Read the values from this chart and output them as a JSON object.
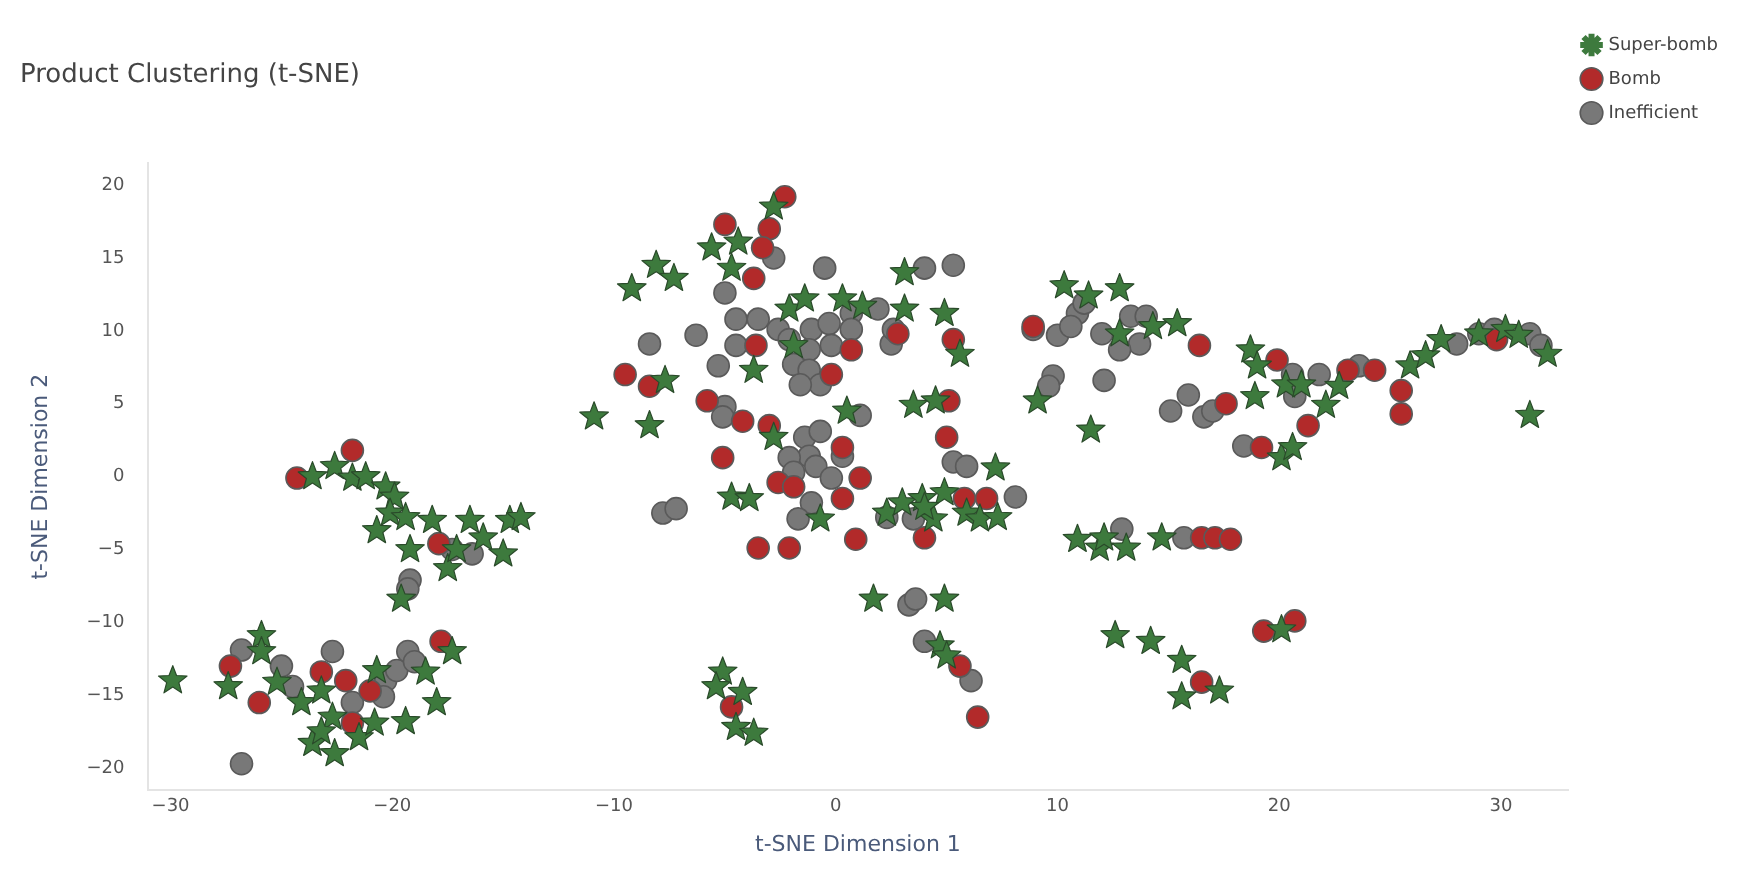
{
  "chart_data": {
    "type": "scatter",
    "title": "Product Clustering (t-SNE)",
    "xlabel": "t-SNE Dimension 1",
    "ylabel": "t-SNE Dimension 2",
    "xlim": [
      -31,
      33
    ],
    "ylim": [
      -21.5,
      21.5
    ],
    "xticks": [
      -30,
      -20,
      -10,
      0,
      10,
      20,
      30
    ],
    "yticks": [
      -20,
      -15,
      -10,
      -5,
      0,
      5,
      10,
      15,
      20
    ],
    "grid": false,
    "legend": "top right",
    "series": [
      {
        "name": "Super-bomb",
        "color": "#3d7a3d",
        "marker": "star",
        "x": [
          -23.6,
          -22.6,
          -21.8,
          -21.2,
          -20.3,
          -19.9,
          -20.1,
          -20.7,
          -19.4,
          -18.2,
          -16.5,
          -19.2,
          -17.5,
          -15.9,
          -15,
          -14.7,
          -14.2,
          -17.1,
          -19.6,
          -17.3,
          -25.9,
          -27.4,
          -25.9,
          -25.2,
          -24.1,
          -23.2,
          -20.7,
          -18.5,
          -18,
          -19.4,
          -22.7,
          -23.6,
          -22.6,
          -21.5,
          -20.8,
          -23.2,
          -2.8,
          -5.6,
          -4.4,
          -4.7,
          -9.2,
          -8.1,
          -7.3,
          3.1,
          -2.1,
          -1.4,
          0.3,
          1.2,
          3.1,
          4.9,
          -1.9,
          -3.7,
          5.6,
          -7.7,
          -10.9,
          -8.4,
          -2.8,
          0.5,
          3.5,
          4.5,
          7.2,
          -0.7,
          -4.7,
          -3.9,
          2.3,
          3,
          3.9,
          4.4,
          4.9,
          5.9,
          6.5,
          7.3,
          4,
          1.7,
          4.9,
          4.7,
          5,
          -5.1,
          -5.4,
          -4.2,
          -4.5,
          -3.7,
          10.3,
          11.4,
          12.8,
          14.3,
          15.4,
          12.8,
          9.1,
          11.5,
          18.7,
          19,
          18.9,
          20.3,
          21,
          22.1,
          22.7,
          25.9,
          26.6,
          27.3,
          29,
          30.2,
          30.8,
          32.1,
          31.3,
          20.1,
          20.6,
          10.9,
          11.9,
          12.1,
          13.1,
          14.7,
          20.1,
          12.6,
          14.2,
          15.6,
          17.3,
          15.6,
          -29.9
        ],
        "values": [
          0,
          0.7,
          -0.1,
          0,
          -0.7,
          -1.4,
          -2.5,
          -3.7,
          -2.8,
          -3,
          -3,
          -5,
          -6.3,
          -4.2,
          -5.3,
          -3,
          -2.8,
          -5,
          -8.4,
          -12,
          -10.9,
          -14.4,
          -12,
          -14.1,
          -15.5,
          -14.7,
          -13.3,
          -13.4,
          -15.5,
          -16.8,
          -16.5,
          -18.3,
          -19,
          -17.9,
          -16.9,
          -17.5,
          18.5,
          15.7,
          16.1,
          14.3,
          12.9,
          14.5,
          13.6,
          14,
          11.5,
          12.2,
          12.2,
          11.7,
          11.5,
          11.2,
          9,
          7.3,
          8.4,
          6.6,
          4.1,
          3.5,
          2.7,
          4.5,
          4.9,
          5.2,
          0.6,
          -2.9,
          -1.4,
          -1.5,
          -2.5,
          -1.8,
          -1.5,
          -2.9,
          -1.1,
          -2.5,
          -2.9,
          -2.8,
          -2.1,
          -8.4,
          -8.4,
          -11.6,
          -12.3,
          -13.4,
          -14.4,
          -14.8,
          -17.2,
          -17.6,
          13.1,
          12.4,
          12.9,
          10.3,
          10.5,
          9.8,
          5.2,
          3.2,
          8.7,
          7.6,
          5.5,
          6.3,
          6.3,
          4.9,
          6.2,
          7.6,
          8.3,
          9.4,
          9.8,
          10.1,
          9.7,
          8.4,
          4.2,
          1.3,
          2,
          -4.3,
          -4.9,
          -4.2,
          -4.9,
          -4.2,
          -10.5,
          -10.9,
          -11.3,
          -12.6,
          -14.7,
          -15.1,
          -14
        ]
      },
      {
        "name": "Bomb",
        "color": "#b22a2a",
        "marker": "circle",
        "x": [
          -21.8,
          -24.3,
          -17.9,
          -17.8,
          -27.3,
          -26,
          -23.2,
          -22.1,
          -21,
          -21.8,
          -2.3,
          -5,
          -3,
          -3.3,
          -3.7,
          -3.6,
          0.7,
          -0.2,
          2.8,
          5.3,
          -9.5,
          -8.4,
          -5.8,
          -4.2,
          -3,
          0.3,
          5.1,
          5,
          -5.1,
          -2.6,
          -1.9,
          1.1,
          0.3,
          -3.5,
          -2.1,
          0.9,
          4,
          5.8,
          6.8,
          5.6,
          6.4,
          -4.7,
          8.9,
          16.4,
          17.6,
          19.9,
          23.1,
          24.3,
          21.3,
          25.5,
          25.5,
          29.8,
          19.2,
          16.5,
          17.1,
          17.8,
          19.3,
          20.7,
          16.5
        ],
        "values": [
          1.8,
          -0.1,
          -4.6,
          -11.3,
          -13,
          -15.5,
          -13.4,
          -14,
          -14.7,
          -16.9,
          19.2,
          17.3,
          17,
          15.7,
          13.6,
          9,
          8.7,
          7,
          9.8,
          9.4,
          7,
          6.2,
          5.2,
          3.8,
          3.5,
          2,
          5.2,
          2.7,
          1.3,
          -0.4,
          -0.7,
          -0.1,
          -1.5,
          -4.9,
          -4.9,
          -4.3,
          -4.2,
          -1.5,
          -1.5,
          -13,
          -16.5,
          -15.8,
          10.3,
          9,
          5,
          8,
          7.3,
          7.3,
          3.5,
          5.9,
          4.3,
          9.4,
          2,
          -4.2,
          -4.2,
          -4.3,
          -10.6,
          -9.9,
          -14.1
        ]
      },
      {
        "name": "Inefficient",
        "color": "#787878",
        "marker": "circle",
        "x": [
          -17.3,
          -16.4,
          -19.2,
          -19.3,
          -26.8,
          -25,
          -24.5,
          -22.7,
          -21.8,
          -20.3,
          -19.8,
          -19.3,
          -19,
          -20.4,
          -26.8,
          -2.8,
          -5,
          -0.5,
          4,
          5.3,
          1.9,
          -4.5,
          -3.5,
          -2.6,
          -2.1,
          -1.1,
          -0.3,
          0.7,
          0.7,
          -0.2,
          -1.2,
          -1.9,
          -1.2,
          -0.7,
          -1.6,
          -4.5,
          -5.3,
          -6.3,
          -8.4,
          2.5,
          2.6,
          8.9,
          -5,
          -5.1,
          -1.4,
          -0.7,
          -1.2,
          -2.1,
          -1.9,
          -0.9,
          0.3,
          1.1,
          5.3,
          5.9,
          8.1,
          -0.2,
          -1.1,
          -1.7,
          -7.8,
          -7.2,
          2.3,
          3.5,
          3.3,
          3.6,
          4,
          6.1,
          10.9,
          11.2,
          10,
          10.6,
          12,
          13.3,
          14,
          13.7,
          12.8,
          9.8,
          9.6,
          12.1,
          15.1,
          15.9,
          16.6,
          17,
          20.6,
          20.7,
          21.8,
          23.6,
          28,
          29,
          29.7,
          31.3,
          31.8,
          18.4,
          12.9,
          15.7
        ],
        "values": [
          -5,
          -5.3,
          -7.1,
          -7.7,
          -11.9,
          -13,
          -14.4,
          -12,
          -15.5,
          -14,
          -13.3,
          -12,
          -12.7,
          -15.1,
          -19.7,
          15,
          12.6,
          14.3,
          14.3,
          14.5,
          11.5,
          10.8,
          10.8,
          10.1,
          9.4,
          10.1,
          10.5,
          11.2,
          10.1,
          9,
          8.7,
          7.7,
          7.3,
          6.3,
          6.3,
          9,
          7.6,
          9.7,
          9.1,
          9.1,
          10.1,
          10.1,
          4.8,
          4.1,
          2.7,
          3.1,
          1.4,
          1.3,
          0.3,
          0.7,
          1.4,
          4.2,
          1,
          0.7,
          -1.4,
          -0.1,
          -1.8,
          -2.9,
          -2.5,
          -2.2,
          -2.8,
          -2.9,
          -8.8,
          -8.4,
          -11.3,
          -14,
          11.2,
          11.9,
          9.7,
          10.3,
          9.8,
          11,
          11,
          9.1,
          8.7,
          6.9,
          6.2,
          6.6,
          4.5,
          5.6,
          4.1,
          4.5,
          7,
          5.5,
          7,
          7.6,
          9.1,
          9.8,
          10.1,
          9.8,
          9,
          2.1,
          -3.6,
          -4.2
        ]
      }
    ]
  }
}
